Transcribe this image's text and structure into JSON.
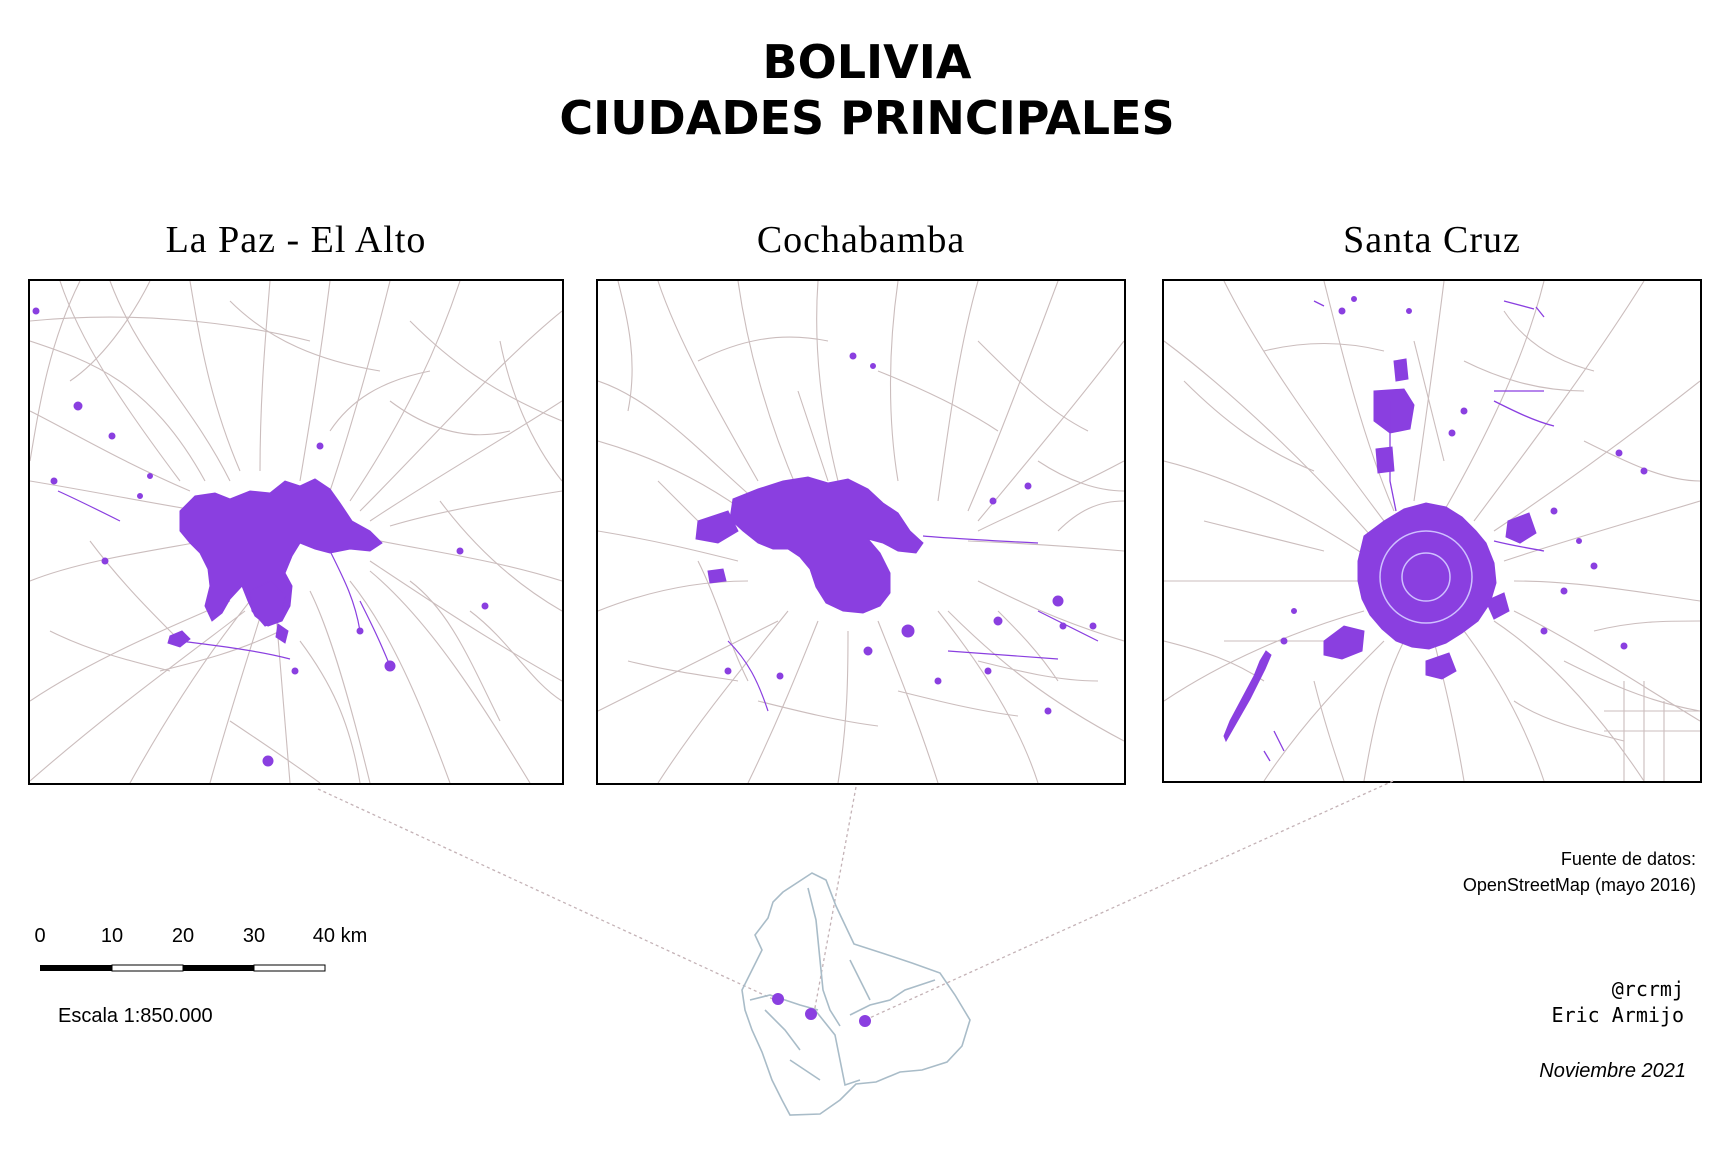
{
  "title": {
    "line1": "BOLIVIA",
    "line2": "CIUDADES PRINCIPALES"
  },
  "panels": [
    {
      "name": "La Paz - El Alto"
    },
    {
      "name": "Cochabamba"
    },
    {
      "name": "Santa Cruz"
    }
  ],
  "scale_bar": {
    "ticks": [
      "0",
      "10",
      "20",
      "30",
      "40 km"
    ],
    "caption": "Escala 1:850.000"
  },
  "source": {
    "line1": "Fuente de datos:",
    "line2": "OpenStreetMap (mayo 2016)"
  },
  "credits": {
    "handle": "@rcrmj",
    "author": "Eric Armijo",
    "date": "Noviembre 2021"
  },
  "colors": {
    "urban": "#8a3fe0",
    "roads": "#cbbdbd",
    "boundary": "#a9bcc8",
    "leader": "#c4b2b6"
  }
}
